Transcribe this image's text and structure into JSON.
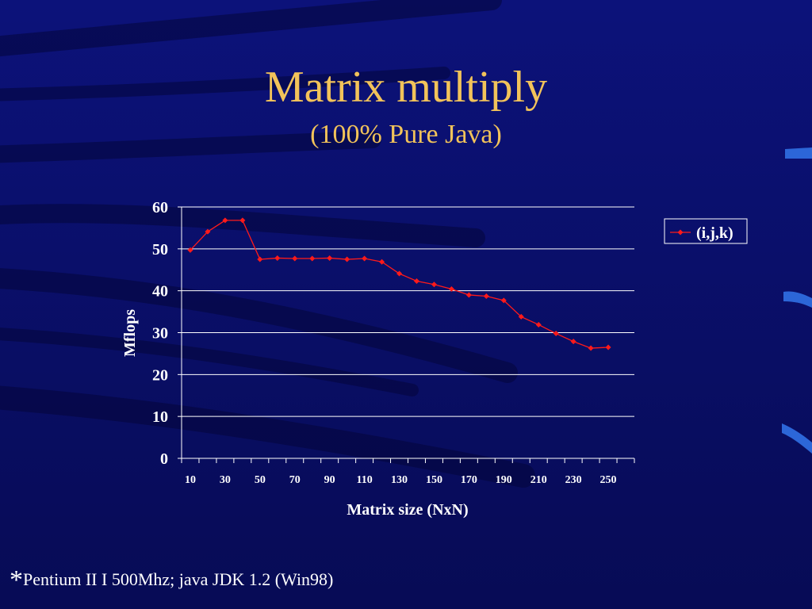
{
  "slide": {
    "title": "Matrix multiply",
    "subtitle": "(100% Pure Java)",
    "footnote_marker": "*",
    "footnote": "Pentium II I 500Mhz;  java JDK 1.2 (Win98)"
  },
  "colors": {
    "background": "#0a0f6e",
    "title": "#f2c35a",
    "text": "#ffffff",
    "series": "#ff1a1a",
    "grid": "#ffffff"
  },
  "chart_data": {
    "type": "line",
    "title": "",
    "xlabel": "Matrix size (NxN)",
    "ylabel": "Mflops",
    "ylim": [
      0,
      60
    ],
    "yticks": [
      0,
      10,
      20,
      30,
      40,
      50,
      60
    ],
    "xtick_labels": [
      "10",
      "30",
      "50",
      "70",
      "90",
      "110",
      "130",
      "150",
      "170",
      "190",
      "210",
      "230",
      "250"
    ],
    "x": [
      10,
      20,
      30,
      40,
      50,
      60,
      70,
      80,
      90,
      100,
      110,
      120,
      130,
      140,
      150,
      160,
      170,
      180,
      190,
      200,
      210,
      220,
      230,
      240,
      250
    ],
    "grid": true,
    "legend_position": "right",
    "series": [
      {
        "name": "(i,j,k)",
        "values": [
          49.7,
          54.1,
          56.8,
          56.8,
          47.5,
          47.8,
          47.7,
          47.7,
          47.8,
          47.5,
          47.7,
          46.9,
          44.1,
          42.3,
          41.5,
          40.4,
          39.0,
          38.7,
          37.7,
          33.8,
          31.9,
          29.8,
          27.9,
          26.3,
          26.5
        ]
      }
    ]
  }
}
